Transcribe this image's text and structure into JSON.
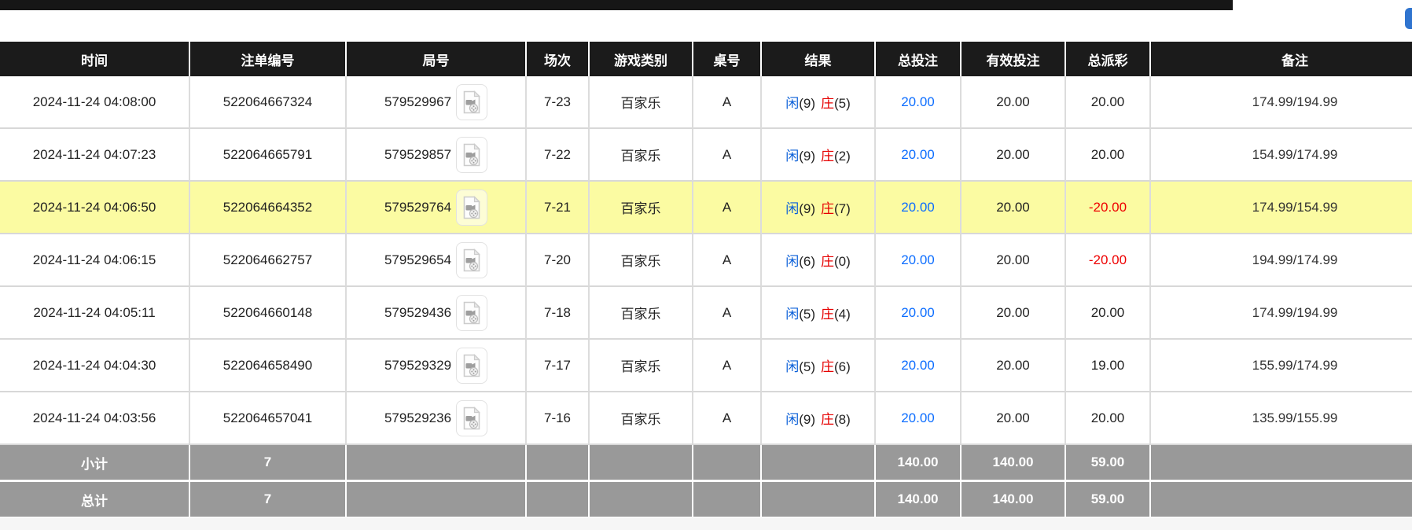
{
  "colors": {
    "header_bg": "#1b1b1b",
    "summary_bg": "#999999",
    "highlight_yellow": "#fbfba2",
    "bet_amount_blue": "#0a6cff",
    "player_blue": "#0a5fd8",
    "banker_red": "#e60000",
    "loss_red": "#ee0000",
    "top_fragment_blue": "#2f74cf"
  },
  "icons": {
    "video_icon": "video-replay-file"
  },
  "table": {
    "columns": [
      {
        "key": "time",
        "label": "时间"
      },
      {
        "key": "bet_id",
        "label": "注单编号"
      },
      {
        "key": "round_id",
        "label": "局号"
      },
      {
        "key": "session",
        "label": "场次"
      },
      {
        "key": "game_type",
        "label": "游戏类别"
      },
      {
        "key": "table_label",
        "label": "桌号"
      },
      {
        "key": "result",
        "label": "结果"
      },
      {
        "key": "total_bet",
        "label": "总投注"
      },
      {
        "key": "valid_bet",
        "label": "有效投注"
      },
      {
        "key": "payout",
        "label": "总派彩"
      },
      {
        "key": "remark",
        "label": "备注"
      }
    ],
    "rows": [
      {
        "time": "2024-11-24 04:08:00",
        "bet_id": "522064667324",
        "round_id": "579529967",
        "session": "7-23",
        "game_type": "百家乐",
        "table_label": "A",
        "result": {
          "player_label": "闲",
          "player_score_text": "(9)",
          "banker_label": "庄",
          "banker_score_text": "(5)"
        },
        "total_bet": "20.00",
        "valid_bet": "20.00",
        "payout": "20.00",
        "remark": "174.99/194.99",
        "highlighted": false
      },
      {
        "time": "2024-11-24 04:07:23",
        "bet_id": "522064665791",
        "round_id": "579529857",
        "session": "7-22",
        "game_type": "百家乐",
        "table_label": "A",
        "result": {
          "player_label": "闲",
          "player_score_text": "(9)",
          "banker_label": "庄",
          "banker_score_text": "(2)"
        },
        "total_bet": "20.00",
        "valid_bet": "20.00",
        "payout": "20.00",
        "remark": "154.99/174.99",
        "highlighted": false
      },
      {
        "time": "2024-11-24 04:06:50",
        "bet_id": "522064664352",
        "round_id": "579529764",
        "session": "7-21",
        "game_type": "百家乐",
        "table_label": "A",
        "result": {
          "player_label": "闲",
          "player_score_text": "(9)",
          "banker_label": "庄",
          "banker_score_text": "(7)"
        },
        "total_bet": "20.00",
        "valid_bet": "20.00",
        "payout": "-20.00",
        "remark": "174.99/154.99",
        "highlighted": true
      },
      {
        "time": "2024-11-24 04:06:15",
        "bet_id": "522064662757",
        "round_id": "579529654",
        "session": "7-20",
        "game_type": "百家乐",
        "table_label": "A",
        "result": {
          "player_label": "闲",
          "player_score_text": "(6)",
          "banker_label": "庄",
          "banker_score_text": "(0)"
        },
        "total_bet": "20.00",
        "valid_bet": "20.00",
        "payout": "-20.00",
        "remark": "194.99/174.99",
        "highlighted": false
      },
      {
        "time": "2024-11-24 04:05:11",
        "bet_id": "522064660148",
        "round_id": "579529436",
        "session": "7-18",
        "game_type": "百家乐",
        "table_label": "A",
        "result": {
          "player_label": "闲",
          "player_score_text": "(5)",
          "banker_label": "庄",
          "banker_score_text": "(4)"
        },
        "total_bet": "20.00",
        "valid_bet": "20.00",
        "payout": "20.00",
        "remark": "174.99/194.99",
        "highlighted": false
      },
      {
        "time": "2024-11-24 04:04:30",
        "bet_id": "522064658490",
        "round_id": "579529329",
        "session": "7-17",
        "game_type": "百家乐",
        "table_label": "A",
        "result": {
          "player_label": "闲",
          "player_score_text": "(5)",
          "banker_label": "庄",
          "banker_score_text": "(6)"
        },
        "total_bet": "20.00",
        "valid_bet": "20.00",
        "payout": "19.00",
        "remark": "155.99/174.99",
        "highlighted": false
      },
      {
        "time": "2024-11-24 04:03:56",
        "bet_id": "522064657041",
        "round_id": "579529236",
        "session": "7-16",
        "game_type": "百家乐",
        "table_label": "A",
        "result": {
          "player_label": "闲",
          "player_score_text": "(9)",
          "banker_label": "庄",
          "banker_score_text": "(8)"
        },
        "total_bet": "20.00",
        "valid_bet": "20.00",
        "payout": "20.00",
        "remark": "135.99/155.99",
        "highlighted": false
      }
    ],
    "summary_rows": [
      {
        "label": "小计",
        "count": "7",
        "total_bet": "140.00",
        "valid_bet": "140.00",
        "payout": "59.00"
      },
      {
        "label": "总计",
        "count": "7",
        "total_bet": "140.00",
        "valid_bet": "140.00",
        "payout": "59.00"
      }
    ]
  }
}
